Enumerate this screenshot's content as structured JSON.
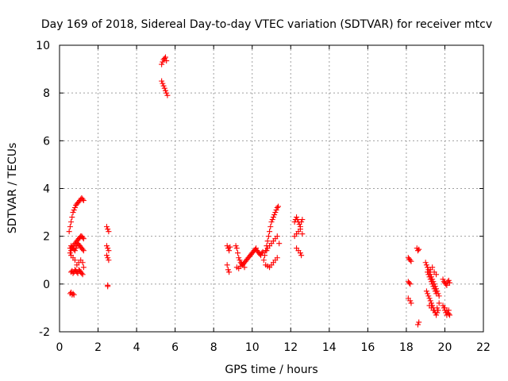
{
  "chart_data": {
    "type": "scatter",
    "title": "Day 169 of 2018, Sidereal Day-to-day VTEC variation (SDTVAR) for receiver mtcv",
    "xlabel": "GPS time / hours",
    "ylabel": "SDTVAR / TECUs",
    "xlim": [
      0,
      22
    ],
    "ylim": [
      -2,
      10
    ],
    "xticks": [
      "0",
      "2",
      "4",
      "6",
      "8",
      "10",
      "12",
      "14",
      "16",
      "18",
      "20",
      "22"
    ],
    "yticks": [
      "-2",
      "0",
      "2",
      "4",
      "6",
      "8",
      "10"
    ],
    "grid": true,
    "marker": "+",
    "series": [
      {
        "name": "SDTVAR",
        "color": "#ff0000",
        "x": [
          0.55,
          0.6,
          0.65,
          0.7,
          0.75,
          0.5,
          0.55,
          0.6,
          0.65,
          0.7,
          0.75,
          0.8,
          0.85,
          0.9,
          0.95,
          1.0,
          1.05,
          1.1,
          1.15,
          1.2,
          1.25,
          0.55,
          0.6,
          0.65,
          0.7,
          0.75,
          0.8,
          0.85,
          0.9,
          0.95,
          1.0,
          1.05,
          1.1,
          1.15,
          1.2,
          1.25,
          0.6,
          0.7,
          0.8,
          0.9,
          1.0,
          1.1,
          1.2,
          1.25,
          0.6,
          0.65,
          0.7,
          0.75,
          0.8,
          0.85,
          0.9,
          0.95,
          1.0,
          1.05,
          1.1,
          1.15,
          1.2,
          0.55,
          0.6,
          0.65,
          0.7,
          0.75,
          0.8,
          0.85,
          0.9,
          0.95,
          1.0,
          1.05,
          1.1,
          1.15,
          1.2,
          1.25,
          2.45,
          2.5,
          2.55,
          2.45,
          2.5,
          2.55,
          2.45,
          2.5,
          2.55,
          2.5,
          2.5,
          5.3,
          5.35,
          5.4,
          5.45,
          5.5,
          5.55,
          5.3,
          5.35,
          5.4,
          5.45,
          5.5,
          5.55,
          5.6,
          8.7,
          8.75,
          8.8,
          8.85,
          8.7,
          8.75,
          8.8,
          9.15,
          9.2,
          9.25,
          9.3,
          9.35,
          9.4,
          9.45,
          9.5,
          9.55,
          9.6,
          9.65,
          9.7,
          9.75,
          9.8,
          9.85,
          9.9,
          9.95,
          10.0,
          10.05,
          10.1,
          10.15,
          10.2,
          10.25,
          10.3,
          10.35,
          10.4,
          10.45,
          10.5,
          10.55,
          9.2,
          9.3,
          9.4,
          9.5,
          9.6,
          10.6,
          10.65,
          10.7,
          10.75,
          10.8,
          10.85,
          10.9,
          10.95,
          11.0,
          11.05,
          11.1,
          11.15,
          11.2,
          11.25,
          11.3,
          11.35,
          10.7,
          10.8,
          10.9,
          11.0,
          11.1,
          11.2,
          11.3,
          10.75,
          10.8,
          10.9,
          11.0,
          11.1,
          11.2,
          11.3,
          11.4,
          12.2,
          12.25,
          12.3,
          12.35,
          12.4,
          12.45,
          12.5,
          12.55,
          12.6,
          12.2,
          12.3,
          12.4,
          12.5,
          12.6,
          12.3,
          12.4,
          12.5,
          12.55,
          18.1,
          18.15,
          18.2,
          18.25,
          18.1,
          18.15,
          18.2,
          18.1,
          18.2,
          18.25,
          18.55,
          18.6,
          18.65,
          18.6,
          18.65,
          19.0,
          19.05,
          19.1,
          19.15,
          19.2,
          19.25,
          19.3,
          19.35,
          19.4,
          19.45,
          19.5,
          19.55,
          19.6,
          19.65,
          19.7,
          19.05,
          19.1,
          19.15,
          19.2,
          19.25,
          19.3,
          19.35,
          19.4,
          19.45,
          19.5,
          19.55,
          19.6,
          19.65,
          19.1,
          19.15,
          19.2,
          19.25,
          19.3,
          19.35,
          19.4,
          19.45,
          19.5,
          19.55,
          19.2,
          19.3,
          19.4,
          19.5,
          19.6,
          19.7,
          19.25,
          19.35,
          19.45,
          19.55,
          19.9,
          19.95,
          20.0,
          20.05,
          20.1,
          20.15,
          20.2,
          20.25,
          19.95,
          20.0,
          20.05,
          20.1,
          20.15,
          20.2,
          19.9,
          20.0,
          20.1,
          20.2,
          20.25
        ],
        "y": [
          -0.4,
          -0.35,
          -0.45,
          -0.4,
          -0.45,
          2.2,
          2.4,
          2.6,
          2.8,
          3.0,
          3.1,
          3.2,
          3.3,
          3.35,
          3.4,
          3.45,
          3.5,
          3.55,
          3.6,
          3.55,
          3.5,
          1.3,
          1.4,
          1.5,
          1.6,
          1.6,
          1.7,
          1.75,
          1.8,
          1.85,
          1.9,
          1.95,
          2.0,
          2.0,
          1.95,
          1.9,
          1.2,
          1.1,
          1.0,
          0.8,
          0.9,
          1.0,
          0.9,
          0.7,
          0.5,
          0.55,
          0.45,
          0.5,
          0.6,
          0.55,
          0.5,
          0.45,
          0.6,
          0.55,
          0.5,
          0.45,
          0.4,
          1.5,
          1.6,
          1.55,
          1.5,
          1.45,
          1.4,
          1.5,
          1.6,
          1.7,
          1.65,
          1.6,
          1.55,
          1.5,
          1.45,
          1.4,
          2.4,
          2.3,
          2.2,
          1.6,
          1.5,
          1.4,
          1.2,
          1.1,
          1.0,
          -0.05,
          -0.1,
          9.2,
          9.3,
          9.4,
          9.45,
          9.5,
          9.35,
          8.5,
          8.4,
          8.3,
          8.2,
          8.1,
          8.0,
          7.9,
          1.6,
          1.5,
          1.4,
          1.55,
          0.8,
          0.6,
          0.5,
          1.6,
          1.5,
          1.3,
          1.1,
          1.0,
          0.9,
          0.85,
          0.8,
          0.85,
          0.9,
          0.95,
          1.0,
          1.05,
          1.1,
          1.15,
          1.2,
          1.25,
          1.3,
          1.35,
          1.4,
          1.45,
          1.5,
          1.4,
          1.35,
          1.3,
          1.25,
          1.2,
          1.3,
          1.35,
          0.7,
          0.65,
          0.75,
          0.8,
          0.7,
          1.0,
          1.2,
          1.4,
          1.6,
          1.8,
          2.0,
          2.2,
          2.4,
          2.6,
          2.7,
          2.8,
          2.9,
          3.0,
          3.1,
          3.2,
          3.25,
          0.8,
          0.75,
          0.7,
          0.8,
          0.9,
          1.0,
          1.1,
          1.4,
          1.5,
          1.6,
          1.7,
          1.8,
          1.9,
          2.0,
          1.7,
          2.6,
          2.7,
          2.8,
          2.7,
          2.6,
          2.5,
          2.4,
          2.6,
          2.7,
          2.0,
          2.1,
          2.2,
          2.3,
          2.1,
          1.5,
          1.4,
          1.3,
          1.2,
          1.1,
          1.05,
          1.0,
          0.95,
          0.1,
          0.05,
          0.0,
          -0.6,
          -0.7,
          -0.8,
          1.5,
          1.4,
          1.45,
          -1.7,
          -1.6,
          0.9,
          0.8,
          0.7,
          0.6,
          0.5,
          0.4,
          0.3,
          0.2,
          0.1,
          0.0,
          -0.1,
          -0.2,
          -0.3,
          -0.4,
          -0.5,
          -0.3,
          -0.4,
          -0.5,
          -0.6,
          -0.7,
          -0.8,
          -0.9,
          -1.0,
          -1.1,
          -1.2,
          -1.3,
          -1.2,
          -1.1,
          0.5,
          0.4,
          0.3,
          0.2,
          0.1,
          0.0,
          -0.1,
          -0.2,
          -0.3,
          -0.4,
          -0.9,
          -1.0,
          -1.1,
          -1.2,
          -1.0,
          -0.8,
          0.6,
          0.7,
          0.5,
          0.4,
          0.2,
          0.1,
          0.05,
          0.0,
          -0.05,
          0.1,
          0.15,
          0.05,
          -1.0,
          -1.1,
          -1.2,
          -1.3,
          -1.2,
          -1.1,
          -0.9,
          -1.0,
          -1.1,
          -1.25,
          -1.3
        ]
      }
    ]
  }
}
